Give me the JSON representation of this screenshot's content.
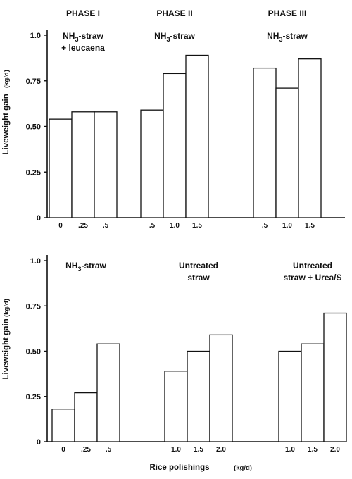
{
  "chart_data": [
    {
      "type": "bar",
      "panel": "top",
      "ylabel": "Liveweight gain",
      "yunit": "(kg/d)",
      "ylim": [
        0,
        1.0
      ],
      "yticks": [
        "0",
        "0.25",
        "0.50",
        "0.75",
        "1.0"
      ],
      "groups": [
        {
          "phase": "PHASE I",
          "treatment": [
            "NH",
            "3",
            "-straw",
            "+ leucaena"
          ],
          "categories": [
            "0",
            ".25",
            ".5"
          ],
          "values": [
            0.54,
            0.58,
            0.58
          ]
        },
        {
          "phase": "PHASE II",
          "treatment": [
            "NH",
            "3",
            "-straw",
            ""
          ],
          "categories": [
            ".5",
            "1.0",
            "1.5"
          ],
          "values": [
            0.59,
            0.79,
            0.89
          ]
        },
        {
          "phase": "PHASE III",
          "treatment": [
            "NH",
            "3",
            "-straw",
            ""
          ],
          "categories": [
            ".5",
            "1.0",
            "1.5"
          ],
          "values": [
            0.82,
            0.71,
            0.87
          ]
        }
      ]
    },
    {
      "type": "bar",
      "panel": "bottom",
      "ylabel": "Liveweight gain",
      "yunit": "(kg/d)",
      "xlabel": "Rice polishings",
      "xunit": "(kg/d)",
      "ylim": [
        0,
        1.0
      ],
      "yticks": [
        "0",
        "0.25",
        "0.50",
        "0.75",
        "1.0"
      ],
      "groups": [
        {
          "treatment": [
            "NH",
            "3",
            "-straw",
            ""
          ],
          "categories": [
            "0",
            ".25",
            ".5"
          ],
          "values": [
            0.18,
            0.27,
            0.54
          ]
        },
        {
          "treatment": [
            "Untreated",
            "",
            "",
            "straw"
          ],
          "categories": [
            "1.0",
            "1.5",
            "2.0"
          ],
          "values": [
            0.39,
            0.5,
            0.59
          ]
        },
        {
          "treatment": [
            "Untreated",
            "",
            "",
            "straw + Urea/S"
          ],
          "categories": [
            "1.0",
            "1.5",
            "2.0"
          ],
          "values": [
            0.5,
            0.54,
            0.71
          ]
        }
      ]
    }
  ]
}
